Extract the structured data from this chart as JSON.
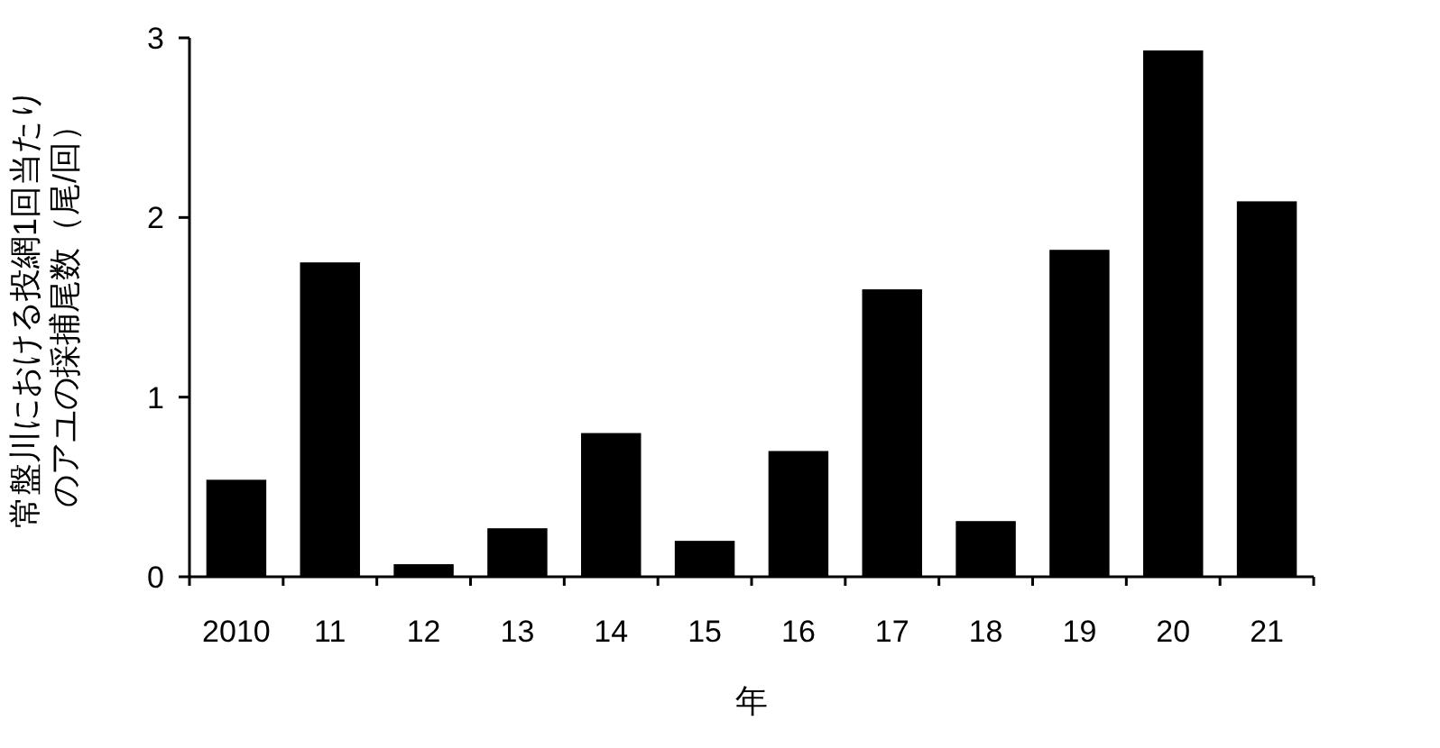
{
  "chart_data": {
    "type": "bar",
    "ylabel": "常盤川における投網1回当たりのアユの採捕尾数（尾/回）",
    "xlabel": "年",
    "categories": [
      "2010",
      "11",
      "12",
      "13",
      "14",
      "15",
      "16",
      "17",
      "18",
      "19",
      "20",
      "21"
    ],
    "values": [
      0.54,
      1.75,
      0.07,
      0.27,
      0.8,
      0.2,
      0.7,
      1.6,
      0.31,
      1.82,
      2.93,
      2.09
    ],
    "color": "#000000",
    "ylim": [
      0,
      3
    ],
    "yticks": [
      0,
      1,
      2,
      3
    ]
  }
}
